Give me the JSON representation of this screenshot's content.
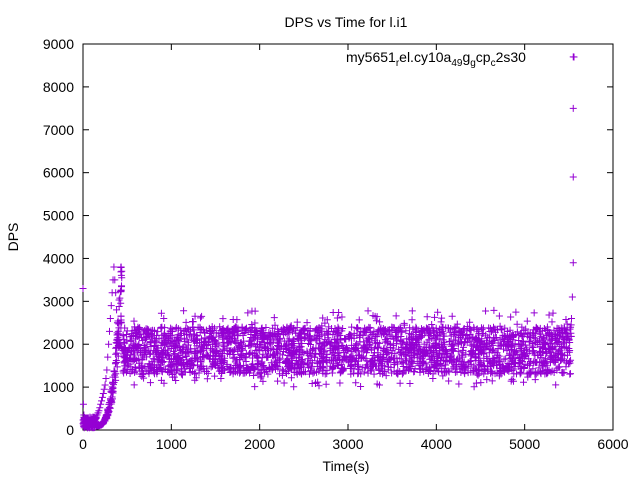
{
  "chart_data": {
    "type": "scatter",
    "title": "DPS vs Time for l.i1",
    "xlabel": "Time(s)",
    "ylabel": "DPS",
    "xlim": [
      0,
      6000
    ],
    "ylim": [
      0,
      9000
    ],
    "x_ticks": [
      0,
      1000,
      2000,
      3000,
      4000,
      5000,
      6000
    ],
    "y_ticks": [
      0,
      1000,
      2000,
      3000,
      4000,
      5000,
      6000,
      7000,
      8000,
      9000
    ],
    "grid": false,
    "legend_position": "top-right",
    "marker": "plus",
    "series": [
      {
        "name": "my5651",
        "name_subscript": "r",
        "name_rest": "el.cy10a",
        "name_sub2": "49",
        "name_mid": "g",
        "name_sub3": "g",
        "name_mid2": "cp",
        "name_sub4": "c",
        "name_tail": "2s30",
        "color": "#9400d3",
        "x": [
          0,
          5,
          10,
          20,
          30,
          40,
          50,
          60,
          70,
          80,
          90,
          100,
          110,
          120,
          130,
          140,
          150,
          160,
          170,
          180,
          190,
          200,
          210,
          220,
          230,
          240,
          250,
          260,
          270,
          280,
          290,
          300,
          310,
          320,
          330,
          340,
          350,
          360,
          370,
          380,
          390,
          400,
          410,
          420,
          430,
          440,
          450,
          460,
          480,
          500,
          550,
          600,
          650,
          700,
          800,
          900,
          1000,
          1100,
          1200,
          1300,
          1400,
          1500,
          1600,
          1700,
          1800,
          1900,
          2000,
          2100,
          2200,
          2300,
          2400,
          2500,
          2600,
          2700,
          2800,
          2900,
          3000,
          3100,
          3200,
          3300,
          3400,
          3500,
          3600,
          3700,
          3800,
          3900,
          4000,
          4100,
          4200,
          4300,
          4400,
          4500,
          4600,
          4700,
          4800,
          4900,
          5000,
          5100,
          5200,
          5300,
          5400,
          5500,
          5530,
          5540,
          5550,
          5550,
          5550,
          5550
        ],
        "y": [
          3300,
          600,
          350,
          250,
          200,
          150,
          120,
          100,
          110,
          130,
          150,
          160,
          180,
          200,
          220,
          260,
          300,
          350,
          400,
          450,
          520,
          600,
          680,
          760,
          850,
          950,
          1050,
          1200,
          1400,
          1700,
          2000,
          2300,
          2600,
          2900,
          3200,
          3500,
          3800,
          3500,
          3200,
          2800,
          2500,
          2300,
          2100,
          2000,
          1950,
          1900,
          1850,
          1850,
          1900,
          1800,
          1850,
          1900,
          1800,
          1850,
          1850,
          1800,
          1900,
          1850,
          1800,
          1850,
          1900,
          1800,
          1850,
          1850,
          1900,
          1800,
          1850,
          1850,
          1800,
          1900,
          1850,
          1800,
          1850,
          1900,
          1850,
          1800,
          1850,
          1850,
          1900,
          1800,
          1850,
          1850,
          1800,
          1900,
          1850,
          1800,
          1850,
          1850,
          1900,
          1800,
          1850,
          1850,
          1800,
          1900,
          1850,
          1800,
          1850,
          1850,
          1900,
          1800,
          1850,
          1900,
          2600,
          3100,
          3900,
          5900,
          7500,
          8700
        ],
        "band_x_range": [
          450,
          5530
        ],
        "band_y_range": [
          1000,
          2800
        ],
        "band_y_dense_range": [
          1300,
          2400
        ]
      }
    ]
  }
}
